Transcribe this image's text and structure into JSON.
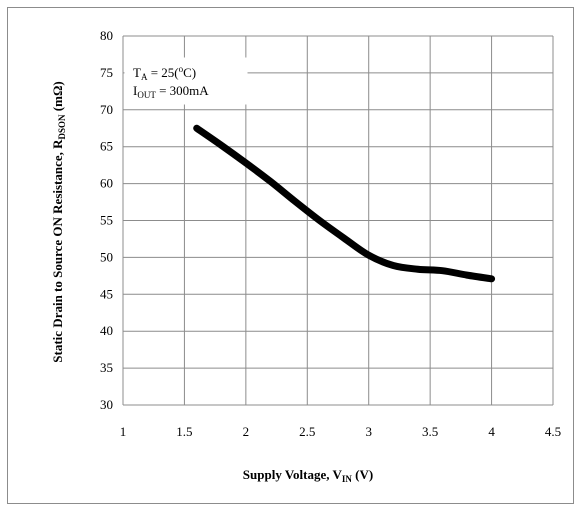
{
  "chart_data": {
    "type": "line",
    "title": "",
    "xlabel": {
      "main": "Supply Voltage, V",
      "sub": "IN",
      "unit": " (V)"
    },
    "ylabel": {
      "main": "Static Drain to Source ON Resistance, R",
      "sub": "DSON",
      "unit": " (mΩ)"
    },
    "xlim": [
      1,
      4.5
    ],
    "ylim": [
      30,
      80
    ],
    "xticks": [
      "1",
      "1.5",
      "2",
      "2.5",
      "3",
      "3.5",
      "4",
      "4.5"
    ],
    "yticks": [
      "30",
      "35",
      "40",
      "45",
      "50",
      "55",
      "60",
      "65",
      "70",
      "75",
      "80"
    ],
    "grid": true,
    "series": [
      {
        "color": "#000000",
        "x": [
          1.6,
          1.8,
          2.0,
          2.2,
          2.4,
          2.6,
          2.8,
          3.0,
          3.2,
          3.4,
          3.6,
          3.8,
          4.0
        ],
        "y": [
          67.5,
          65.2,
          62.8,
          60.3,
          57.6,
          55.0,
          52.6,
          50.3,
          48.9,
          48.4,
          48.2,
          47.6,
          47.1
        ]
      }
    ],
    "annotation": {
      "line1": {
        "main": "T",
        "sub": "A",
        "rest": " = 25(",
        "sup": "o",
        "end": "C)"
      },
      "line2": {
        "main": "I",
        "sub": "OUT",
        "rest": " = 300mA"
      }
    }
  }
}
